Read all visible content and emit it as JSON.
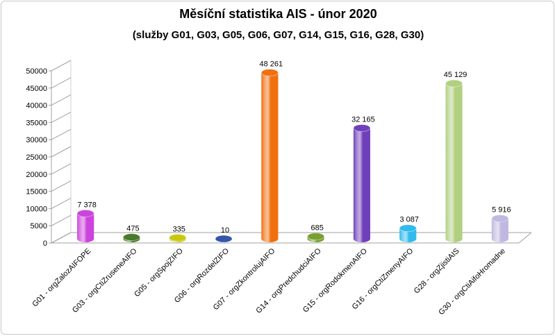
{
  "chart_data": {
    "type": "bar",
    "title": "Měsíční statistika AIS -  únor 2020",
    "subtitle": "(služby G01, G03, G05, G06, G07, G14, G15, G16, G28, G30)",
    "categories": [
      "G01 - orgZalozAIFOPE",
      "G03 - orgCtiZruseneAIFO",
      "G05 - orgSpojZIFO",
      "G06 - orgRozdelZIFO",
      "G07 - orgZkontrolujAIFO",
      "G14 - orgPredchudciAIFO",
      "G15 - orgRodokmenAIFO",
      "G16 - orgCtiZmenyAIFO",
      "G28 - orgZjistiAIS",
      "G30 - orgCtiAifoHromadne"
    ],
    "values": [
      7378,
      475,
      335,
      10,
      48261,
      685,
      32165,
      3087,
      45129,
      5916
    ],
    "value_labels": [
      "7 378",
      "475",
      "335",
      "10",
      "48 261",
      "685",
      "32 165",
      "3 087",
      "45 129",
      "5 916"
    ],
    "colors": [
      "#cc44dd",
      "#4a7a2a",
      "#c8c810",
      "#3355aa",
      "#f07010",
      "#77a030",
      "#7040bb",
      "#30bbee",
      "#b0d080",
      "#c0b8e0"
    ],
    "ylim": [
      0,
      50000
    ],
    "yticks": [
      "0",
      "5000",
      "10000",
      "15000",
      "20000",
      "25000",
      "30000",
      "35000",
      "40000",
      "45000",
      "50000"
    ],
    "xlabel": "",
    "ylabel": "",
    "grid": false,
    "legend": "none"
  }
}
